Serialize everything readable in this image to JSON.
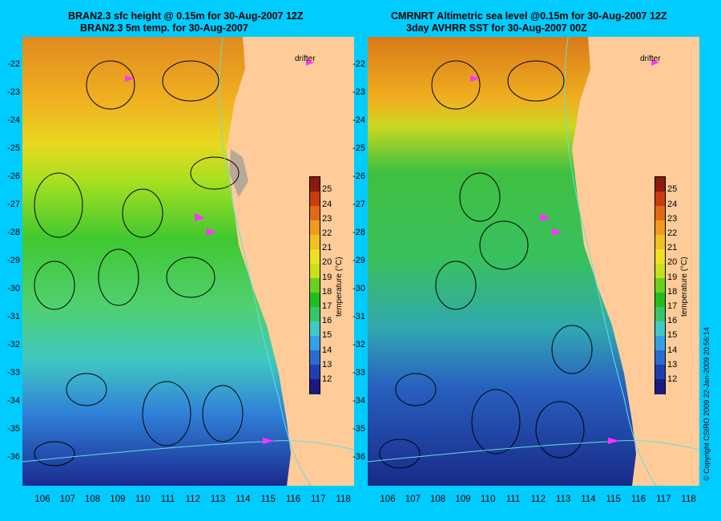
{
  "left_panel": {
    "title_line1": "BRAN2.3 sfc height @ 0.15m for 30-Aug-2007 12Z",
    "title_line2": "BRAN2.3 5m temp. for 30-Aug-2007",
    "legend_label": "drifter"
  },
  "right_panel": {
    "title_line1": "CMRNRT Altimetric sea level  @0.15m  for 30-Aug-2007 12Z",
    "title_line2": "3day AVHRR SST for 30-Aug-2007 00Z",
    "legend_label": "drifter"
  },
  "latitudes": [
    "-22",
    "-23",
    "-24",
    "-25",
    "-26",
    "-27",
    "-28",
    "-29",
    "-30",
    "-31",
    "-32",
    "-33",
    "-34",
    "-35",
    "-36"
  ],
  "longitudes": [
    "106",
    "107",
    "108",
    "109",
    "110",
    "111",
    "112",
    "113",
    "114",
    "115",
    "116",
    "117",
    "118"
  ],
  "colorbar": {
    "ticks": [
      "12",
      "13",
      "14",
      "15",
      "16",
      "17",
      "18",
      "19",
      "20",
      "21",
      "22",
      "23",
      "24",
      "25"
    ],
    "unit_label": "temperature (°C)",
    "colors": [
      "#1a1a80",
      "#1f3fb0",
      "#2a6dd0",
      "#33a0e8",
      "#3fc8c8",
      "#39c46b",
      "#1fbf1f",
      "#6bd020",
      "#c8e018",
      "#f0e020",
      "#f0c020",
      "#f09a20",
      "#e06a18",
      "#c83c10",
      "#8b1a10"
    ]
  },
  "copyright": "© Copyright CSIRO 2009  22-Jan-2009 20:56:14",
  "colors": {
    "background": "#00ccff",
    "land": "#ffcc99",
    "contour": "#000000",
    "coast_contour": "#66dddd",
    "drifter": "#ff33ff"
  }
}
